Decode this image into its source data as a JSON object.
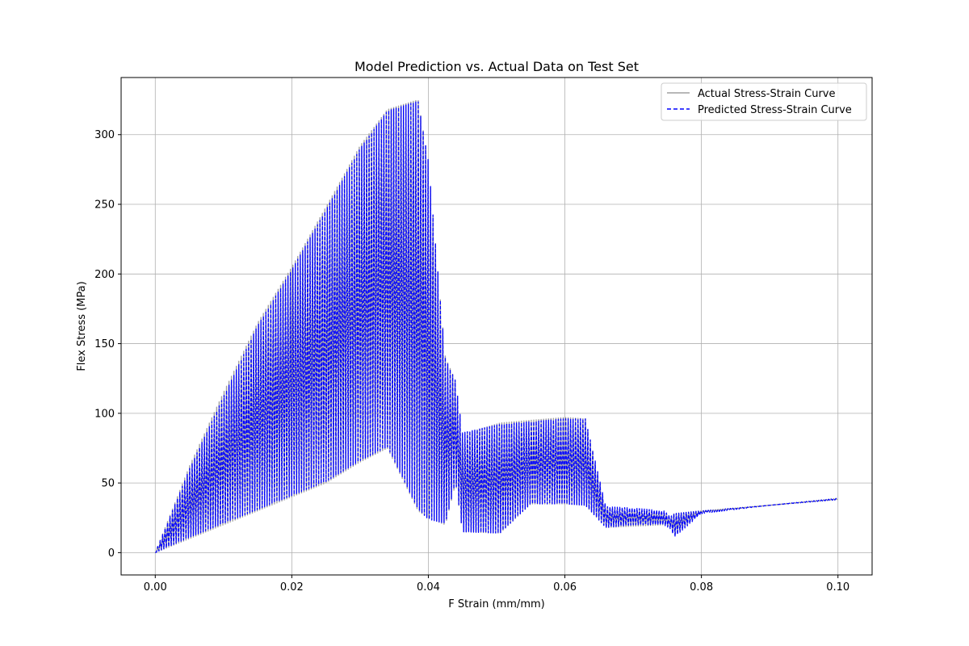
{
  "chart_data": {
    "type": "line",
    "title": "Model Prediction vs. Actual Data on Test Set",
    "xlabel": "F Strain (mm/mm)",
    "ylabel": "Flex Stress (MPa)",
    "xlim": [
      -0.005,
      0.105
    ],
    "ylim": [
      -16,
      341
    ],
    "xticks": [
      "0.00",
      "0.02",
      "0.04",
      "0.06",
      "0.08",
      "0.10"
    ],
    "yticks": [
      "0",
      "50",
      "100",
      "150",
      "200",
      "250",
      "300"
    ],
    "grid": true,
    "legend_position": "top-right",
    "series": [
      {
        "name": "Actual Stress-Strain Curve",
        "color": "#a0a0a0",
        "style": "solid",
        "envelope_x": [
          0.0,
          0.005,
          0.01,
          0.015,
          0.02,
          0.025,
          0.03,
          0.034,
          0.0385,
          0.04,
          0.0425,
          0.044,
          0.045,
          0.0505,
          0.055,
          0.06,
          0.063,
          0.066,
          0.07,
          0.0745,
          0.0755,
          0.076,
          0.08,
          0.09,
          0.1
        ],
        "envelope_upper": [
          0,
          62,
          115,
          165,
          205,
          248,
          292,
          318,
          325,
          280,
          140,
          123,
          85,
          93,
          95,
          97,
          96,
          32,
          31,
          29,
          25,
          28,
          30,
          34,
          39
        ],
        "envelope_lower": [
          0,
          10,
          20,
          30,
          40,
          50,
          65,
          75,
          30,
          25,
          20,
          50,
          15,
          14,
          35,
          35,
          34,
          18,
          19,
          20,
          18,
          12,
          29,
          34,
          38
        ]
      },
      {
        "name": "Predicted Stress-Strain Curve",
        "color": "#0000ff",
        "style": "dashed",
        "envelope_x": [
          0.0,
          0.005,
          0.01,
          0.015,
          0.02,
          0.025,
          0.03,
          0.034,
          0.0385,
          0.04,
          0.0425,
          0.044,
          0.045,
          0.0505,
          0.055,
          0.06,
          0.063,
          0.066,
          0.07,
          0.0745,
          0.0755,
          0.076,
          0.08,
          0.09,
          0.1
        ],
        "envelope_upper": [
          0,
          60,
          112,
          163,
          203,
          246,
          290,
          317,
          324,
          281,
          139,
          123,
          86,
          92,
          94,
          96,
          96,
          33,
          32,
          30,
          26,
          28,
          30,
          34,
          39
        ],
        "envelope_lower": [
          0,
          11,
          21,
          31,
          41,
          51,
          66,
          76,
          31,
          24,
          21,
          51,
          15,
          14,
          35,
          35,
          34,
          18,
          20,
          20,
          17,
          11,
          28,
          34,
          38
        ]
      }
    ]
  }
}
